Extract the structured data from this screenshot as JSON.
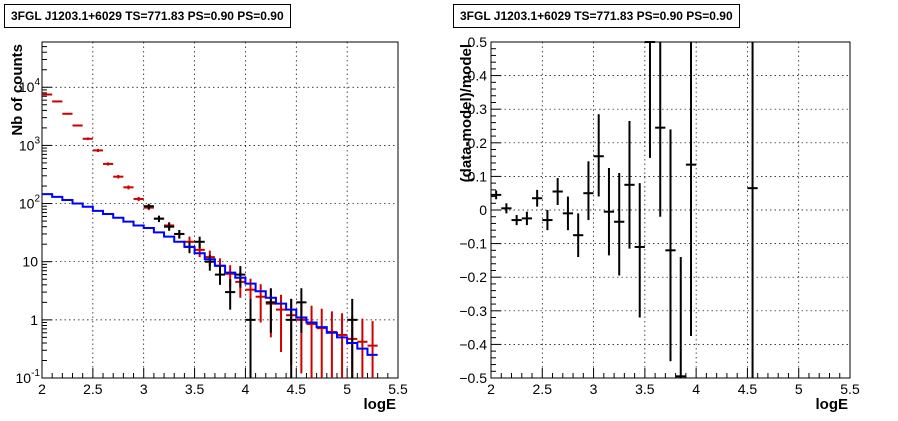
{
  "chart_data": [
    {
      "type": "histogram",
      "title": "3FGL J1203.1+6029 TS=771.83 PS=0.90 PS=0.90",
      "xlabel": "logE",
      "ylabel": "Nb of counts",
      "xlim": [
        2,
        5.5
      ],
      "ylim": [
        0.1,
        60000
      ],
      "yscale": "log",
      "grid": true,
      "x_ticks": [
        "2",
        "2.5",
        "3",
        "3.5",
        "4",
        "4.5",
        "5",
        "5.5"
      ],
      "y_ticks": [
        {
          "v": 0.1,
          "label": "10",
          "sup": "-1"
        },
        {
          "v": 1,
          "label": "1",
          "sup": ""
        },
        {
          "v": 10,
          "label": "10",
          "sup": ""
        },
        {
          "v": 100,
          "label": "10",
          "sup": "2"
        },
        {
          "v": 1000,
          "label": "10",
          "sup": "3"
        },
        {
          "v": 10000,
          "label": "10",
          "sup": "4"
        }
      ],
      "series": [
        {
          "color": "#cc0000",
          "style": "errorbar",
          "points": [
            {
              "x": 2.05,
              "y": 7500,
              "lo": 7320,
              "hi": 7680
            },
            {
              "x": 2.15,
              "y": 5700,
              "lo": 5550,
              "hi": 5850
            },
            {
              "x": 2.25,
              "y": 3500,
              "lo": 3380,
              "hi": 3620
            },
            {
              "x": 2.35,
              "y": 2200,
              "lo": 2110,
              "hi": 2290
            },
            {
              "x": 2.45,
              "y": 1300,
              "lo": 1230,
              "hi": 1370
            },
            {
              "x": 2.55,
              "y": 820,
              "lo": 770,
              "hi": 870
            },
            {
              "x": 2.65,
              "y": 480,
              "lo": 450,
              "hi": 510
            },
            {
              "x": 2.75,
              "y": 290,
              "lo": 270,
              "hi": 310
            },
            {
              "x": 2.85,
              "y": 190,
              "lo": 175,
              "hi": 205
            },
            {
              "x": 2.95,
              "y": 120,
              "lo": 110,
              "hi": 130
            },
            {
              "x": 3.05,
              "y": 85,
              "lo": 77,
              "hi": 93
            },
            {
              "x": 3.15,
              "y": 55,
              "lo": 49,
              "hi": 61
            },
            {
              "x": 3.25,
              "y": 42,
              "lo": 36,
              "hi": 48
            },
            {
              "x": 3.35,
              "y": 30,
              "lo": 25,
              "hi": 35
            },
            {
              "x": 3.45,
              "y": 22,
              "lo": 18,
              "hi": 27
            },
            {
              "x": 3.55,
              "y": 16,
              "lo": 12,
              "hi": 20
            },
            {
              "x": 3.65,
              "y": 12,
              "lo": 8.5,
              "hi": 15.5
            },
            {
              "x": 3.75,
              "y": 8.5,
              "lo": 5.6,
              "hi": 11.4
            },
            {
              "x": 3.85,
              "y": 6.2,
              "lo": 3.7,
              "hi": 8.7
            },
            {
              "x": 3.95,
              "y": 4.5,
              "lo": 2.4,
              "hi": 6.6
            },
            {
              "x": 4.05,
              "y": 3.3,
              "lo": 1.5,
              "hi": 5.1
            },
            {
              "x": 4.15,
              "y": 2.5,
              "lo": 0.9,
              "hi": 4.1
            },
            {
              "x": 4.25,
              "y": 1.9,
              "lo": 0.5,
              "hi": 3.3
            },
            {
              "x": 4.35,
              "y": 1.5,
              "lo": 0.28,
              "hi": 2.7
            },
            {
              "x": 4.45,
              "y": 1.2,
              "lo": 0.17,
              "hi": 2.3
            },
            {
              "x": 4.55,
              "y": 1.0,
              "lo": 0.12,
              "hi": 2.0
            },
            {
              "x": 4.65,
              "y": 0.85,
              "lo": 0.1,
              "hi": 1.75
            },
            {
              "x": 4.75,
              "y": 0.72,
              "lo": 0.1,
              "hi": 1.55
            },
            {
              "x": 4.85,
              "y": 0.62,
              "lo": 0.1,
              "hi": 1.4
            },
            {
              "x": 4.95,
              "y": 0.55,
              "lo": 0.1,
              "hi": 1.3
            },
            {
              "x": 5.05,
              "y": 0.47,
              "lo": 0.1,
              "hi": 1.15
            },
            {
              "x": 5.15,
              "y": 0.42,
              "lo": 0.1,
              "hi": 1.05
            },
            {
              "x": 5.25,
              "y": 0.36,
              "lo": 0.1,
              "hi": 0.95
            }
          ]
        },
        {
          "color": "#000000",
          "style": "errorbar",
          "points": [
            {
              "x": 3.05,
              "y": 90,
              "lo": 81,
              "hi": 99
            },
            {
              "x": 3.15,
              "y": 55,
              "lo": 48,
              "hi": 62
            },
            {
              "x": 3.25,
              "y": 40,
              "lo": 34,
              "hi": 46
            },
            {
              "x": 3.35,
              "y": 30,
              "lo": 25,
              "hi": 35
            },
            {
              "x": 3.45,
              "y": 18,
              "lo": 14,
              "hi": 22
            },
            {
              "x": 3.55,
              "y": 22,
              "lo": 17,
              "hi": 27
            },
            {
              "x": 3.65,
              "y": 10,
              "lo": 7,
              "hi": 13
            },
            {
              "x": 3.75,
              "y": 6,
              "lo": 4,
              "hi": 8.5
            },
            {
              "x": 3.85,
              "y": 3,
              "lo": 1.5,
              "hi": 5
            },
            {
              "x": 3.95,
              "y": 6,
              "lo": 3.6,
              "hi": 8.4
            },
            {
              "x": 4.05,
              "y": 1,
              "lo": 0.1,
              "hi": 2.3
            },
            {
              "x": 4.25,
              "y": 2,
              "lo": 0.6,
              "hi": 3.5
            },
            {
              "x": 4.45,
              "y": 1,
              "lo": 0.1,
              "hi": 2.3
            },
            {
              "x": 4.55,
              "y": 2,
              "lo": 0.6,
              "hi": 3.5
            },
            {
              "x": 5.05,
              "y": 1,
              "lo": 0.1,
              "hi": 2.3
            }
          ]
        },
        {
          "color": "#0000ff",
          "style": "step",
          "edges": [
            2.0,
            2.1,
            2.2,
            2.3,
            2.4,
            2.5,
            2.6,
            2.7,
            2.8,
            2.9,
            3.0,
            3.1,
            3.2,
            3.3,
            3.4,
            3.5,
            3.6,
            3.7,
            3.8,
            3.9,
            4.0,
            4.1,
            4.2,
            4.3,
            4.4,
            4.5,
            4.6,
            4.7,
            4.8,
            4.9,
            5.0,
            5.1,
            5.2,
            5.3
          ],
          "values": [
            145,
            130,
            115,
            100,
            88,
            75,
            66,
            57,
            49,
            42,
            38,
            32,
            27,
            22,
            18,
            14,
            11,
            8.5,
            6.5,
            5.3,
            4.2,
            3.1,
            2.4,
            1.9,
            1.5,
            1.1,
            0.9,
            0.75,
            0.6,
            0.5,
            0.4,
            0.32,
            0.25
          ]
        }
      ]
    },
    {
      "type": "scatter",
      "title": "3FGL J1203.1+6029 TS=771.83 PS=0.90 PS=0.90",
      "xlabel": "logE",
      "ylabel": "(data-model)/model",
      "xlim": [
        2,
        5.5
      ],
      "ylim": [
        -0.5,
        0.5
      ],
      "grid": true,
      "x_ticks": [
        "2",
        "2.5",
        "3",
        "3.5",
        "4",
        "4.5",
        "5",
        "5.5"
      ],
      "y_ticks": [
        "-0.5",
        "-0.4",
        "-0.3",
        "-0.2",
        "-0.1",
        "0",
        "0.1",
        "0.2",
        "0.3",
        "0.4",
        "0.5"
      ],
      "series": [
        {
          "color": "#000000",
          "style": "errorbar",
          "points": [
            {
              "x": 2.05,
              "y": 0.045,
              "lo": 0.032,
              "hi": 0.058
            },
            {
              "x": 2.15,
              "y": 0.005,
              "lo": -0.01,
              "hi": 0.02
            },
            {
              "x": 2.25,
              "y": -0.03,
              "lo": -0.045,
              "hi": -0.015
            },
            {
              "x": 2.35,
              "y": -0.025,
              "lo": -0.045,
              "hi": -0.005
            },
            {
              "x": 2.45,
              "y": 0.035,
              "lo": 0.01,
              "hi": 0.06
            },
            {
              "x": 2.55,
              "y": -0.03,
              "lo": -0.06,
              "hi": 0.0
            },
            {
              "x": 2.65,
              "y": 0.055,
              "lo": 0.015,
              "hi": 0.095
            },
            {
              "x": 2.75,
              "y": -0.01,
              "lo": -0.06,
              "hi": 0.04
            },
            {
              "x": 2.85,
              "y": -0.075,
              "lo": -0.14,
              "hi": -0.01
            },
            {
              "x": 2.95,
              "y": 0.05,
              "lo": -0.03,
              "hi": 0.145
            },
            {
              "x": 3.05,
              "y": 0.16,
              "lo": 0.04,
              "hi": 0.285
            },
            {
              "x": 3.15,
              "y": -0.005,
              "lo": -0.135,
              "hi": 0.125
            },
            {
              "x": 3.25,
              "y": -0.035,
              "lo": -0.195,
              "hi": 0.11
            },
            {
              "x": 3.35,
              "y": 0.075,
              "lo": -0.115,
              "hi": 0.265
            },
            {
              "x": 3.45,
              "y": -0.11,
              "lo": -0.32,
              "hi": 0.08
            },
            {
              "x": 3.55,
              "y": 0.5,
              "lo": 0.155,
              "hi": 0.5
            },
            {
              "x": 3.65,
              "y": 0.245,
              "lo": -0.02,
              "hi": 0.5
            },
            {
              "x": 3.75,
              "y": -0.12,
              "lo": -0.45,
              "hi": 0.24
            },
            {
              "x": 3.85,
              "y": -0.495,
              "lo": -0.5,
              "hi": -0.14
            },
            {
              "x": 3.95,
              "y": 0.135,
              "lo": -0.375,
              "hi": 0.5
            },
            {
              "x": 4.55,
              "y": 0.065,
              "lo": -0.5,
              "hi": 0.5
            }
          ]
        }
      ]
    }
  ]
}
